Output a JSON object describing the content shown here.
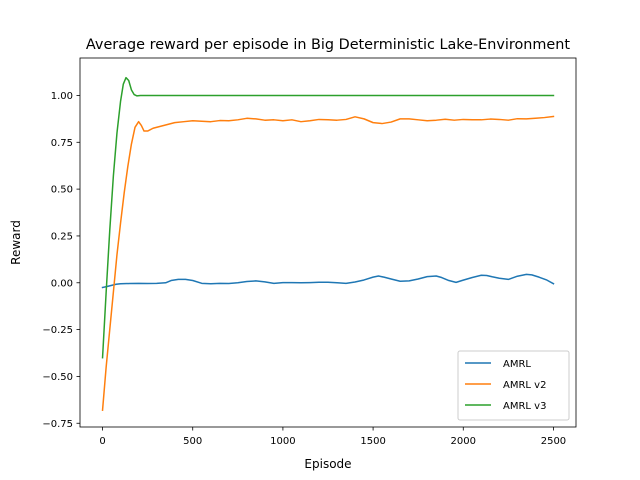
{
  "chart_data": {
    "type": "line",
    "title": "Average reward per episode in Big Deterministic Lake-Environment",
    "xlabel": "Episode",
    "ylabel": "Reward",
    "xlim": [
      -125,
      2625
    ],
    "ylim": [
      -0.77,
      1.2
    ],
    "xticks": [
      0,
      500,
      1000,
      1500,
      2000,
      2500
    ],
    "xtick_labels": [
      "0",
      "500",
      "1000",
      "1500",
      "2000",
      "2500"
    ],
    "yticks": [
      -0.75,
      -0.5,
      -0.25,
      0.0,
      0.25,
      0.5,
      0.75,
      1.0
    ],
    "ytick_labels": [
      "−0.75",
      "−0.50",
      "−0.25",
      "0.00",
      "0.25",
      "0.50",
      "0.75",
      "1.00"
    ],
    "grid": false,
    "legend_position": "lower-right",
    "series": [
      {
        "name": "AMRL",
        "color": "#1f77b4",
        "x": [
          0,
          25,
          50,
          75,
          100,
          150,
          200,
          250,
          300,
          350,
          380,
          420,
          460,
          500,
          550,
          600,
          650,
          700,
          750,
          800,
          850,
          900,
          950,
          1000,
          1050,
          1100,
          1150,
          1200,
          1250,
          1300,
          1350,
          1400,
          1450,
          1500,
          1530,
          1560,
          1600,
          1650,
          1700,
          1750,
          1800,
          1850,
          1880,
          1920,
          1960,
          2000,
          2050,
          2100,
          2130,
          2160,
          2200,
          2250,
          2300,
          2350,
          2380,
          2420,
          2460,
          2500
        ],
        "y": [
          -0.025,
          -0.02,
          -0.014,
          -0.008,
          -0.005,
          -0.004,
          -0.003,
          -0.004,
          -0.003,
          0.0,
          0.012,
          0.018,
          0.018,
          0.012,
          -0.003,
          -0.005,
          -0.003,
          -0.004,
          0.0,
          0.007,
          0.01,
          0.005,
          -0.003,
          0.001,
          0.001,
          0.0,
          0.001,
          0.003,
          0.003,
          0.0,
          -0.003,
          0.004,
          0.015,
          0.03,
          0.036,
          0.03,
          0.02,
          0.008,
          0.01,
          0.02,
          0.033,
          0.036,
          0.028,
          0.012,
          0.002,
          0.014,
          0.028,
          0.04,
          0.039,
          0.032,
          0.024,
          0.018,
          0.035,
          0.045,
          0.042,
          0.03,
          0.016,
          -0.005
        ]
      },
      {
        "name": "AMRL v2",
        "color": "#ff7f0e",
        "x": [
          0,
          20,
          40,
          60,
          80,
          100,
          120,
          140,
          160,
          180,
          200,
          215,
          230,
          250,
          280,
          320,
          360,
          400,
          450,
          500,
          550,
          600,
          650,
          700,
          750,
          800,
          850,
          900,
          950,
          1000,
          1050,
          1100,
          1150,
          1200,
          1250,
          1300,
          1350,
          1400,
          1450,
          1500,
          1550,
          1600,
          1650,
          1700,
          1750,
          1800,
          1850,
          1900,
          1950,
          2000,
          2050,
          2100,
          2150,
          2200,
          2250,
          2300,
          2350,
          2400,
          2450,
          2500
        ],
        "y": [
          -0.68,
          -0.45,
          -0.25,
          -0.05,
          0.15,
          0.32,
          0.48,
          0.62,
          0.74,
          0.83,
          0.86,
          0.84,
          0.81,
          0.81,
          0.825,
          0.835,
          0.845,
          0.855,
          0.86,
          0.865,
          0.862,
          0.86,
          0.866,
          0.865,
          0.87,
          0.878,
          0.875,
          0.868,
          0.87,
          0.865,
          0.87,
          0.86,
          0.865,
          0.872,
          0.87,
          0.868,
          0.872,
          0.886,
          0.875,
          0.855,
          0.85,
          0.858,
          0.875,
          0.875,
          0.87,
          0.865,
          0.868,
          0.873,
          0.868,
          0.872,
          0.87,
          0.87,
          0.874,
          0.872,
          0.868,
          0.876,
          0.875,
          0.878,
          0.882,
          0.888
        ]
      },
      {
        "name": "AMRL v3",
        "color": "#2ca02c",
        "x": [
          0,
          20,
          40,
          60,
          80,
          100,
          115,
          130,
          145,
          160,
          175,
          190,
          210,
          240,
          300,
          500,
          1000,
          1500,
          2000,
          2500
        ],
        "y": [
          -0.4,
          -0.05,
          0.28,
          0.57,
          0.8,
          0.97,
          1.06,
          1.095,
          1.08,
          1.03,
          1.005,
          0.998,
          1.0,
          1.0,
          1.0,
          1.0,
          1.0,
          1.0,
          1.0,
          1.0
        ]
      }
    ]
  }
}
